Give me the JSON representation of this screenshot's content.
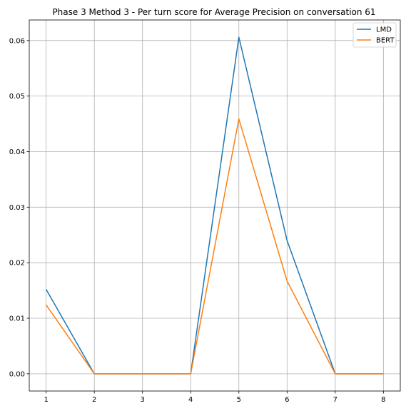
{
  "chart_data": {
    "type": "line",
    "title": "Phase 3 Method 3 - Per turn score for Average Precision on conversation 61",
    "xlabel": "",
    "ylabel": "",
    "x": [
      1,
      2,
      3,
      4,
      5,
      6,
      7,
      8
    ],
    "xticks": [
      "1",
      "2",
      "3",
      "4",
      "5",
      "6",
      "7",
      "8"
    ],
    "yticks": [
      "0.00",
      "0.01",
      "0.02",
      "0.03",
      "0.04",
      "0.05",
      "0.06"
    ],
    "xlim": [
      0.65,
      8.35
    ],
    "ylim": [
      -0.0031,
      0.0637
    ],
    "grid": true,
    "legend_position": "top-right",
    "series": [
      {
        "name": "LMD",
        "color": "#1f77b4",
        "values": [
          0.0152,
          0.0,
          0.0,
          0.0,
          0.0606,
          0.024,
          0.0,
          0.0
        ]
      },
      {
        "name": "BERT",
        "color": "#ff7f0e",
        "values": [
          0.0124,
          0.0,
          0.0,
          0.0,
          0.0459,
          0.0167,
          0.0,
          0.0
        ]
      }
    ]
  }
}
